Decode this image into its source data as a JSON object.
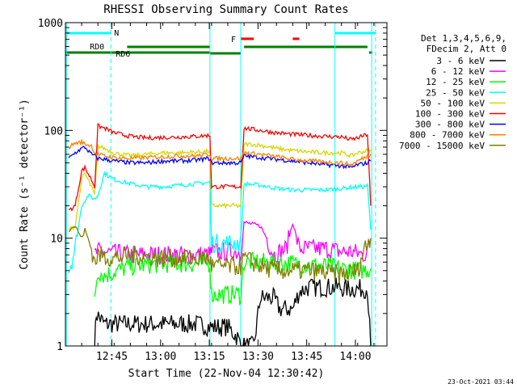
{
  "chart_data": {
    "type": "line",
    "title": "RHESSI Observing Summary Count Rates",
    "xlabel": "Start Time (22-Nov-04 12:30:42)",
    "ylabel": "Count Rate (s⁻¹ detector⁻¹)",
    "y_scale": "log",
    "ylim": [
      1,
      1000
    ],
    "xlim_minutes": [
      0,
      99
    ],
    "x_ticks": [
      {
        "label": "12:45",
        "min": 14.3
      },
      {
        "label": "13:00",
        "min": 29.3
      },
      {
        "label": "13:15",
        "min": 44.3
      },
      {
        "label": "13:30",
        "min": 59.3
      },
      {
        "label": "13:45",
        "min": 74.3
      },
      {
        "label": "14:00",
        "min": 89.3
      }
    ],
    "y_ticks": [
      {
        "label": "1",
        "v": 1
      },
      {
        "label": "10",
        "v": 10
      },
      {
        "label": "100",
        "v": 100
      },
      {
        "label": "1000",
        "v": 1000
      }
    ],
    "legend_header": [
      "Det 1,3,4,5,6,9,",
      "FDecim 2, Att 0"
    ],
    "legend_placement": "right",
    "timestamp": "23-Oct-2021 03:44",
    "series": [
      {
        "name": "3 - 6 keV",
        "color": "#000000",
        "points": [
          [
            9,
            1
          ],
          [
            9.5,
            2
          ],
          [
            12,
            1.6
          ],
          [
            20,
            1.6
          ],
          [
            30,
            1.6
          ],
          [
            40,
            1.6
          ],
          [
            45,
            1.5
          ],
          [
            50,
            1.5
          ],
          [
            53,
            1.2
          ],
          [
            54,
            1
          ],
          [
            58,
            1
          ],
          [
            60,
            2.8
          ],
          [
            64,
            2.8
          ],
          [
            66,
            2.2
          ],
          [
            70,
            2.2
          ],
          [
            72,
            3.2
          ],
          [
            75,
            3.5
          ],
          [
            80,
            3.5
          ],
          [
            84,
            3.5
          ],
          [
            86,
            3.4
          ],
          [
            88,
            3.4
          ],
          [
            90,
            3.4
          ],
          [
            93,
            3.4
          ],
          [
            94,
            1
          ]
        ]
      },
      {
        "name": "6 - 12 keV",
        "color": "#ff00ff",
        "points": [
          [
            9,
            7
          ],
          [
            10,
            7.5
          ],
          [
            20,
            7
          ],
          [
            30,
            7
          ],
          [
            40,
            7
          ],
          [
            44.5,
            7
          ],
          [
            45,
            7.5
          ],
          [
            54,
            7.5
          ],
          [
            55,
            14
          ],
          [
            60,
            13
          ],
          [
            62,
            10
          ],
          [
            64,
            7
          ],
          [
            68,
            8
          ],
          [
            70,
            14
          ],
          [
            72,
            8
          ],
          [
            76,
            8
          ],
          [
            80,
            8
          ],
          [
            85,
            7.5
          ],
          [
            88,
            7.5
          ],
          [
            92,
            7
          ],
          [
            94,
            9
          ]
        ]
      },
      {
        "name": "12 - 25 keV",
        "color": "#00ff00",
        "points": [
          [
            9,
            3
          ],
          [
            10,
            5
          ],
          [
            12,
            4.5
          ],
          [
            16,
            5
          ],
          [
            20,
            5.5
          ],
          [
            30,
            5.8
          ],
          [
            40,
            5.8
          ],
          [
            44.5,
            5.8
          ],
          [
            45,
            3
          ],
          [
            54,
            3
          ],
          [
            55,
            6
          ],
          [
            60,
            6
          ],
          [
            70,
            5.8
          ],
          [
            80,
            5.5
          ],
          [
            90,
            5
          ],
          [
            94,
            5.2
          ]
        ]
      },
      {
        "name": "25 - 50 keV",
        "color": "#00ffff",
        "points": [
          [
            1,
            5
          ],
          [
            3,
            8
          ],
          [
            5,
            20
          ],
          [
            7,
            25
          ],
          [
            9,
            23
          ],
          [
            10,
            25
          ],
          [
            12,
            40
          ],
          [
            15,
            35
          ],
          [
            20,
            32
          ],
          [
            25,
            30
          ],
          [
            30,
            30
          ],
          [
            35,
            31
          ],
          [
            40,
            32
          ],
          [
            44.5,
            33
          ],
          [
            45,
            9
          ],
          [
            54,
            9
          ],
          [
            55,
            32
          ],
          [
            60,
            31
          ],
          [
            65,
            29
          ],
          [
            70,
            28
          ],
          [
            75,
            28
          ],
          [
            80,
            28
          ],
          [
            85,
            29
          ],
          [
            90,
            30
          ],
          [
            92,
            30
          ],
          [
            93,
            31
          ],
          [
            94,
            12
          ]
        ]
      },
      {
        "name": "50 - 100 keV",
        "color": "#d7d700",
        "points": [
          [
            1,
            12
          ],
          [
            3,
            13
          ],
          [
            5,
            35
          ],
          [
            6,
            40
          ],
          [
            8,
            30
          ],
          [
            9,
            25
          ],
          [
            10,
            72
          ],
          [
            12,
            68
          ],
          [
            15,
            62
          ],
          [
            20,
            58
          ],
          [
            25,
            60
          ],
          [
            30,
            62
          ],
          [
            35,
            62
          ],
          [
            40,
            63
          ],
          [
            44.5,
            64
          ],
          [
            45,
            20
          ],
          [
            54,
            20
          ],
          [
            55,
            75
          ],
          [
            60,
            73
          ],
          [
            65,
            68
          ],
          [
            70,
            65
          ],
          [
            75,
            63
          ],
          [
            80,
            62
          ],
          [
            85,
            62
          ],
          [
            88,
            58
          ],
          [
            90,
            62
          ],
          [
            93,
            65
          ],
          [
            94,
            66
          ]
        ]
      },
      {
        "name": "100 - 300 keV",
        "color": "#ff0000",
        "points": [
          [
            1,
            18
          ],
          [
            3,
            20
          ],
          [
            5,
            42
          ],
          [
            6,
            45
          ],
          [
            8,
            35
          ],
          [
            9,
            30
          ],
          [
            10,
            110
          ],
          [
            12,
            105
          ],
          [
            15,
            95
          ],
          [
            20,
            88
          ],
          [
            25,
            85
          ],
          [
            30,
            86
          ],
          [
            35,
            87
          ],
          [
            40,
            88
          ],
          [
            44.5,
            90
          ],
          [
            45,
            30
          ],
          [
            54,
            30
          ],
          [
            55,
            105
          ],
          [
            60,
            100
          ],
          [
            65,
            95
          ],
          [
            70,
            92
          ],
          [
            75,
            90
          ],
          [
            80,
            88
          ],
          [
            85,
            87
          ],
          [
            88,
            82
          ],
          [
            90,
            85
          ],
          [
            93,
            92
          ],
          [
            94,
            20
          ]
        ]
      },
      {
        "name": "300 - 800 keV",
        "color": "#0000ff",
        "points": [
          [
            1,
            55
          ],
          [
            3,
            62
          ],
          [
            5,
            68
          ],
          [
            6,
            70
          ],
          [
            8,
            60
          ],
          [
            9,
            58
          ],
          [
            10,
            55
          ],
          [
            12,
            54
          ],
          [
            15,
            52
          ],
          [
            20,
            50
          ],
          [
            25,
            50
          ],
          [
            30,
            52
          ],
          [
            35,
            52
          ],
          [
            40,
            53
          ],
          [
            44.5,
            55
          ],
          [
            45,
            50
          ],
          [
            54,
            50
          ],
          [
            55,
            58
          ],
          [
            60,
            56
          ],
          [
            65,
            54
          ],
          [
            70,
            52
          ],
          [
            75,
            50
          ],
          [
            80,
            48
          ],
          [
            85,
            47
          ],
          [
            88,
            45
          ],
          [
            90,
            48
          ],
          [
            93,
            50
          ],
          [
            94,
            52
          ]
        ]
      },
      {
        "name": "800 - 7000 keV",
        "color": "#ff7f00",
        "points": [
          [
            1,
            70
          ],
          [
            3,
            76
          ],
          [
            5,
            78
          ],
          [
            6,
            75
          ],
          [
            8,
            72
          ],
          [
            9,
            62
          ],
          [
            10,
            60
          ],
          [
            12,
            58
          ],
          [
            15,
            56
          ],
          [
            20,
            55
          ],
          [
            25,
            56
          ],
          [
            30,
            57
          ],
          [
            35,
            58
          ],
          [
            40,
            58
          ],
          [
            44.5,
            60
          ],
          [
            45,
            55
          ],
          [
            54,
            55
          ],
          [
            55,
            62
          ],
          [
            60,
            60
          ],
          [
            65,
            57
          ],
          [
            70,
            54
          ],
          [
            75,
            52
          ],
          [
            80,
            51
          ],
          [
            85,
            50
          ],
          [
            88,
            48
          ],
          [
            90,
            52
          ],
          [
            93,
            58
          ],
          [
            94,
            60
          ]
        ]
      },
      {
        "name": "7000 - 15000 keV",
        "color": "#7f7f00",
        "points": [
          [
            1,
            12
          ],
          [
            3,
            13
          ],
          [
            5,
            10
          ],
          [
            6,
            12
          ],
          [
            8,
            8
          ],
          [
            9,
            6
          ],
          [
            10,
            7
          ],
          [
            15,
            6.5
          ],
          [
            20,
            7
          ],
          [
            30,
            6.5
          ],
          [
            40,
            6.5
          ],
          [
            44.5,
            6.5
          ],
          [
            45,
            5.5
          ],
          [
            54,
            5.5
          ],
          [
            55,
            6.5
          ],
          [
            60,
            5.5
          ],
          [
            65,
            5
          ],
          [
            70,
            5
          ],
          [
            75,
            5
          ],
          [
            80,
            4.8
          ],
          [
            85,
            4.6
          ],
          [
            90,
            5
          ],
          [
            92,
            8
          ],
          [
            94,
            10
          ]
        ]
      }
    ],
    "status_bars": {
      "N": {
        "label": "N",
        "color": "#00ffff"
      },
      "F": {
        "label": "F",
        "color": "#ff0000"
      },
      "RD0": {
        "label": "RD0",
        "color": "#008000"
      },
      "RD6": {
        "label": "RD6",
        "color": "#008000"
      }
    }
  }
}
